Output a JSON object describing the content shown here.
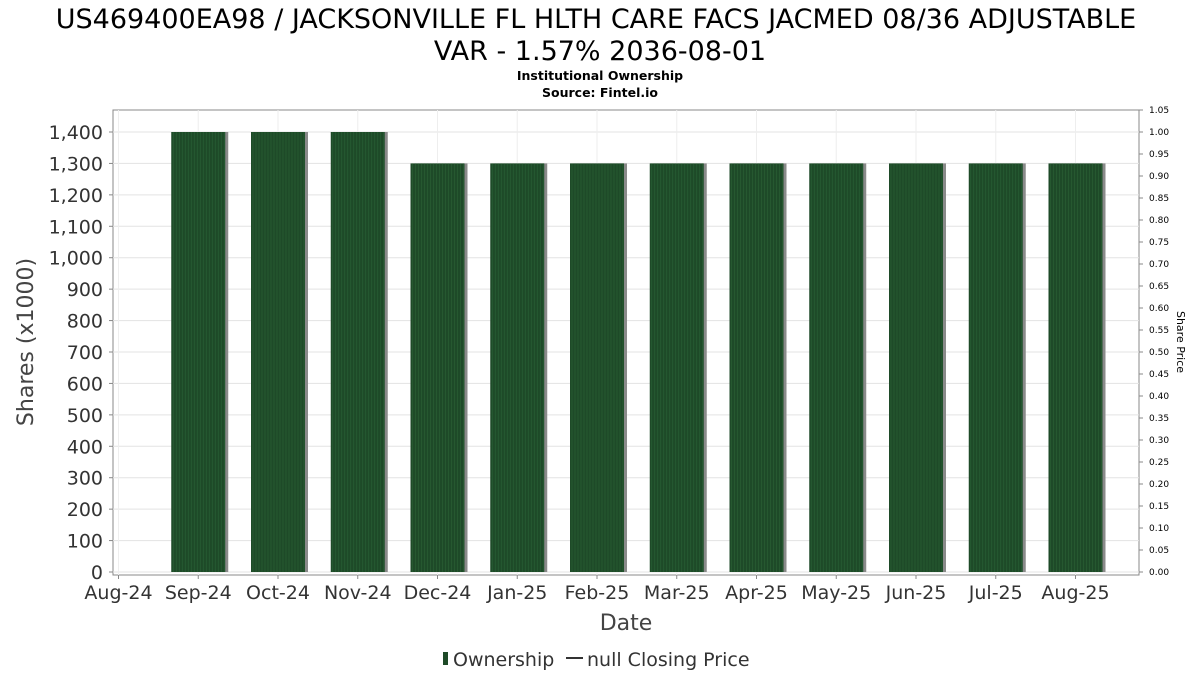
{
  "chart_data": {
    "type": "bar",
    "title_line1": "US469400EA98 / JACKSONVILLE FL HLTH CARE FACS JACMED 08/36 ADJUSTABLE",
    "title_line2": "VAR - 1.57% 2036-08-01",
    "subtitle": "Institutional Ownership",
    "source": "Source: Fintel.io",
    "xlabel": "Date",
    "ylabel": "Shares (x1000)",
    "y2label": "Share Price",
    "x_tick_labels": [
      "Aug-24",
      "Sep-24",
      "Oct-24",
      "Nov-24",
      "Dec-24",
      "Jan-25",
      "Feb-25",
      "Mar-25",
      "Apr-25",
      "May-25",
      "Jun-25",
      "Jul-25",
      "Aug-25"
    ],
    "categories": [
      "Sep-24",
      "Oct-24",
      "Nov-24",
      "Dec-24",
      "Jan-25",
      "Feb-25",
      "Mar-25",
      "Apr-25",
      "May-25",
      "Jun-25",
      "Jul-25",
      "Aug-25"
    ],
    "series": [
      {
        "name": "Ownership",
        "color": "#1e4a28",
        "values": [
          1400,
          1400,
          1400,
          1300,
          1300,
          1300,
          1300,
          1300,
          1300,
          1300,
          1300,
          1300
        ]
      }
    ],
    "ylim": [
      0,
      1400
    ],
    "y_ticks": [
      "0",
      "100",
      "200",
      "300",
      "400",
      "500",
      "600",
      "700",
      "800",
      "900",
      "1,000",
      "1,100",
      "1,200",
      "1,300",
      "1,400"
    ],
    "y2lim": [
      0,
      1.05
    ],
    "y2_ticks": [
      "0.00",
      "0.05",
      "0.10",
      "0.15",
      "0.20",
      "0.25",
      "0.30",
      "0.35",
      "0.40",
      "0.45",
      "0.50",
      "0.55",
      "0.60",
      "0.65",
      "0.70",
      "0.75",
      "0.80",
      "0.85",
      "0.90",
      "0.95",
      "1.00",
      "1.05"
    ],
    "legend": {
      "position": "bottom-center",
      "items": [
        {
          "label": "Ownership",
          "marker": "bar",
          "color": "#1e4a28"
        },
        {
          "label": "null Closing Price",
          "marker": "line",
          "color": "#333333"
        }
      ]
    },
    "grid": true
  }
}
